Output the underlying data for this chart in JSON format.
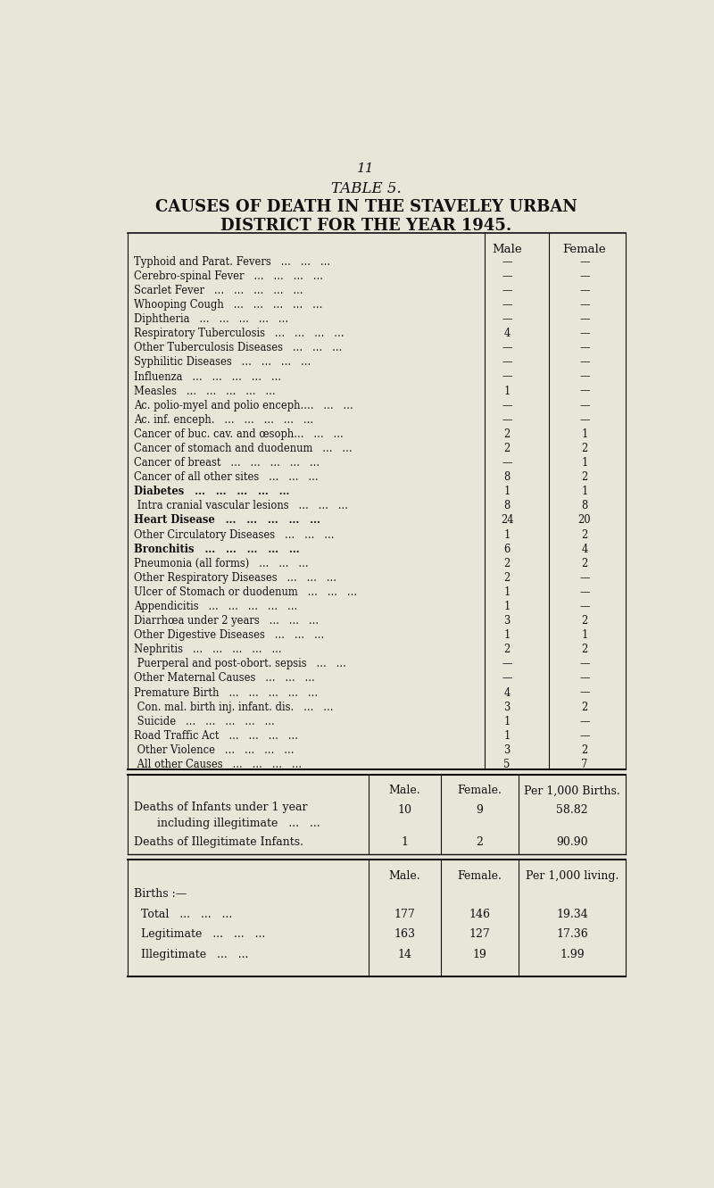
{
  "page_number": "11",
  "table_label": "TABLE 5.",
  "title_line1": "CAUSES OF DEATH IN THE STAVELEY URBAN",
  "title_line2": "DISTRICT FOR THE YEAR 1945.",
  "bg_color": "#e8e6d8",
  "text_color": "#111111",
  "col_header_male": "Male",
  "col_header_female": "Female",
  "rows": [
    {
      "cause": "Typhoid and Parat. Fevers   ...   ...   ...",
      "male": "—",
      "female": "—",
      "bold": false
    },
    {
      "cause": "Cerebro-spinal Fever   ...   ...   ...   ...",
      "male": "—",
      "female": "—",
      "bold": false
    },
    {
      "cause": "Scarlet Fever   ...   ...   ...   ...   ...",
      "male": "—",
      "female": "—",
      "bold": false
    },
    {
      "cause": "Whooping Cough   ...   ...   ...   ...   ...",
      "male": "—",
      "female": "—",
      "bold": false
    },
    {
      "cause": "Diphtheria   ...   ...   ...   ...   ...",
      "male": "—",
      "female": "—",
      "bold": false
    },
    {
      "cause": "Respiratory Tuberculosis   ...   ...   ...   ...",
      "male": "4",
      "female": "—",
      "bold": false
    },
    {
      "cause": "Other Tuberculosis Diseases   ...   ...   ...",
      "male": "—",
      "female": "—",
      "bold": false
    },
    {
      "cause": "Syphilitic Diseases   ...   ...   ...   ...",
      "male": "—",
      "female": "—",
      "bold": false
    },
    {
      "cause": "Influenza   ...   ...   ...   ...   ...",
      "male": "—",
      "female": "—",
      "bold": false
    },
    {
      "cause": "Measles   ...   ...   ...   ...   ...",
      "male": "1",
      "female": "—",
      "bold": false
    },
    {
      "cause": "Ac. polio-myel and polio enceph....   ...   ...",
      "male": "—",
      "female": "—",
      "bold": false
    },
    {
      "cause": "Ac. inf. enceph.   ...   ...   ...   ...   ...",
      "male": "—",
      "female": "—",
      "bold": false
    },
    {
      "cause": "Cancer of buc. cav. and œsoph...   ...   ...",
      "male": "2",
      "female": "1",
      "bold": false
    },
    {
      "cause": "Cancer of stomach and duodenum   ...   ...",
      "male": "2",
      "female": "2",
      "bold": false
    },
    {
      "cause": "Cancer of breast   ...   ...   ...   ...   ...",
      "male": "—",
      "female": "1",
      "bold": false
    },
    {
      "cause": "Cancer of all other sites   ...   ...   ...",
      "male": "8",
      "female": "2",
      "bold": false
    },
    {
      "cause": "Diabetes   ...   ...   ...   ...   ...",
      "male": "1",
      "female": "1",
      "bold": true
    },
    {
      "cause": " Intra cranial vascular lesions   ...   ...   ...",
      "male": "8",
      "female": "8",
      "bold": false
    },
    {
      "cause": "Heart Disease   ...   ...   ...   ...   ...",
      "male": "24",
      "female": "20",
      "bold": true
    },
    {
      "cause": "Other Circulatory Diseases   ...   ...   ...",
      "male": "1",
      "female": "2",
      "bold": false
    },
    {
      "cause": "Bronchitis   ...   ...   ...   ...   ...",
      "male": "6",
      "female": "4",
      "bold": true
    },
    {
      "cause": "Pneumonia (all forms)   ...   ...   ...",
      "male": "2",
      "female": "2",
      "bold": false
    },
    {
      "cause": "Other Respiratory Diseases   ...   ...   ...",
      "male": "2",
      "female": "—",
      "bold": false
    },
    {
      "cause": "Ulcer of Stomach or duodenum   ...   ...   ...",
      "male": "1",
      "female": "—",
      "bold": false
    },
    {
      "cause": "Appendicitis   ...   ...   ...   ...   ...",
      "male": "1",
      "female": "—",
      "bold": false
    },
    {
      "cause": "Diarrhœa under 2 years   ...   ...   ...",
      "male": "3",
      "female": "2",
      "bold": false
    },
    {
      "cause": "Other Digestive Diseases   ...   ...   ...",
      "male": "1",
      "female": "1",
      "bold": false
    },
    {
      "cause": "Nephritis   ...   ...   ...   ...   ...",
      "male": "2",
      "female": "2",
      "bold": false
    },
    {
      "cause": " Puerperal and post-obort. sepsis   ...   ...",
      "male": "—",
      "female": "—",
      "bold": false
    },
    {
      "cause": "Other Maternal Causes   ...   ...   ...",
      "male": "—",
      "female": "—",
      "bold": false
    },
    {
      "cause": "Premature Birth   ...   ...   ...   ...   ...",
      "male": "4",
      "female": "—",
      "bold": false
    },
    {
      "cause": " Con. mal. birth inj. infant. dis.   ...   ...",
      "male": "3",
      "female": "2",
      "bold": false
    },
    {
      "cause": " Suicide   ...   ...   ...   ...   ...",
      "male": "1",
      "female": "—",
      "bold": false
    },
    {
      "cause": "Road Traffic Act   ...   ...   ...   ...",
      "male": "1",
      "female": "—",
      "bold": false
    },
    {
      "cause": " Other Violence   ...   ...   ...   ...",
      "male": "3",
      "female": "2",
      "bold": false
    },
    {
      "cause": " All other Causes   ...   ...   ...   ...",
      "male": "5",
      "female": "7",
      "bold": false
    }
  ],
  "bottom_section1_headers": [
    "Male.",
    "Female.",
    "Per 1,000 Births."
  ],
  "bottom_section1_rows": [
    {
      "label1": "Deaths of Infants under 1 year",
      "label2": "  including illegitimate   ...   ...",
      "male": "10",
      "female": "9",
      "per1000": "58.82"
    },
    {
      "label1": "Deaths of Illegitimate Infants.",
      "label2": "",
      "male": "1",
      "female": "2",
      "per1000": "90.90"
    }
  ],
  "bottom_section2_headers": [
    "Male.",
    "Female.",
    "Per 1,000 living."
  ],
  "bottom_section2_label": "Births :—",
  "bottom_section2_rows": [
    {
      "label": "  Total   ...   ...   ...",
      "male": "177",
      "female": "146",
      "per1000": "19.34"
    },
    {
      "label": "  Legitimate   ...   ...   ...",
      "male": "163",
      "female": "127",
      "per1000": "17.36"
    },
    {
      "label": "  Illegitimate   ...   ...",
      "male": "14",
      "female": "19",
      "per1000": "1.99"
    }
  ]
}
